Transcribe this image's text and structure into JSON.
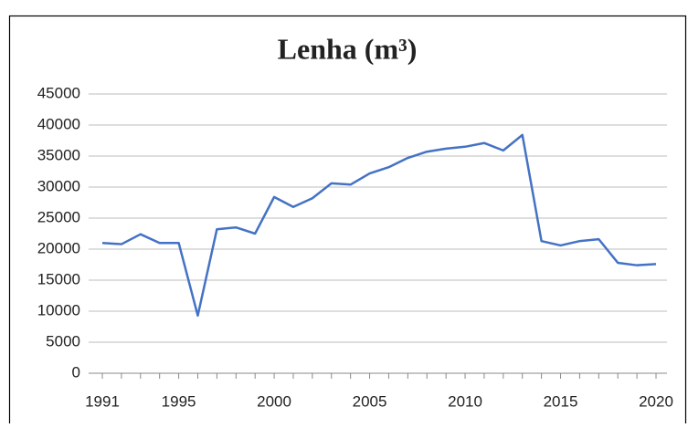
{
  "chart_data": {
    "type": "line",
    "title": "Lenha (m³)",
    "x": [
      1991,
      1992,
      1993,
      1994,
      1995,
      1996,
      1997,
      1998,
      1999,
      2000,
      2001,
      2002,
      2003,
      2004,
      2005,
      2006,
      2007,
      2008,
      2009,
      2010,
      2011,
      2012,
      2013,
      2014,
      2015,
      2016,
      2017,
      2018,
      2019,
      2020
    ],
    "series": [
      {
        "name": "Lenha",
        "color": "#4472c4",
        "values": [
          21000,
          20800,
          22400,
          21000,
          21000,
          9300,
          23200,
          23500,
          22500,
          28400,
          26800,
          28200,
          30600,
          30400,
          32200,
          33200,
          34700,
          35700,
          36200,
          36500,
          37100,
          35900,
          38400,
          21300,
          20600,
          21300,
          21600,
          17800,
          17400,
          17600
        ]
      }
    ],
    "xlim": [
      1991,
      2020
    ],
    "xticks": [
      1991,
      1995,
      2000,
      2005,
      2010,
      2015,
      2020
    ],
    "ylim": [
      0,
      45000
    ],
    "yticks": [
      0,
      5000,
      10000,
      15000,
      20000,
      25000,
      30000,
      35000,
      40000,
      45000
    ],
    "grid": true
  }
}
